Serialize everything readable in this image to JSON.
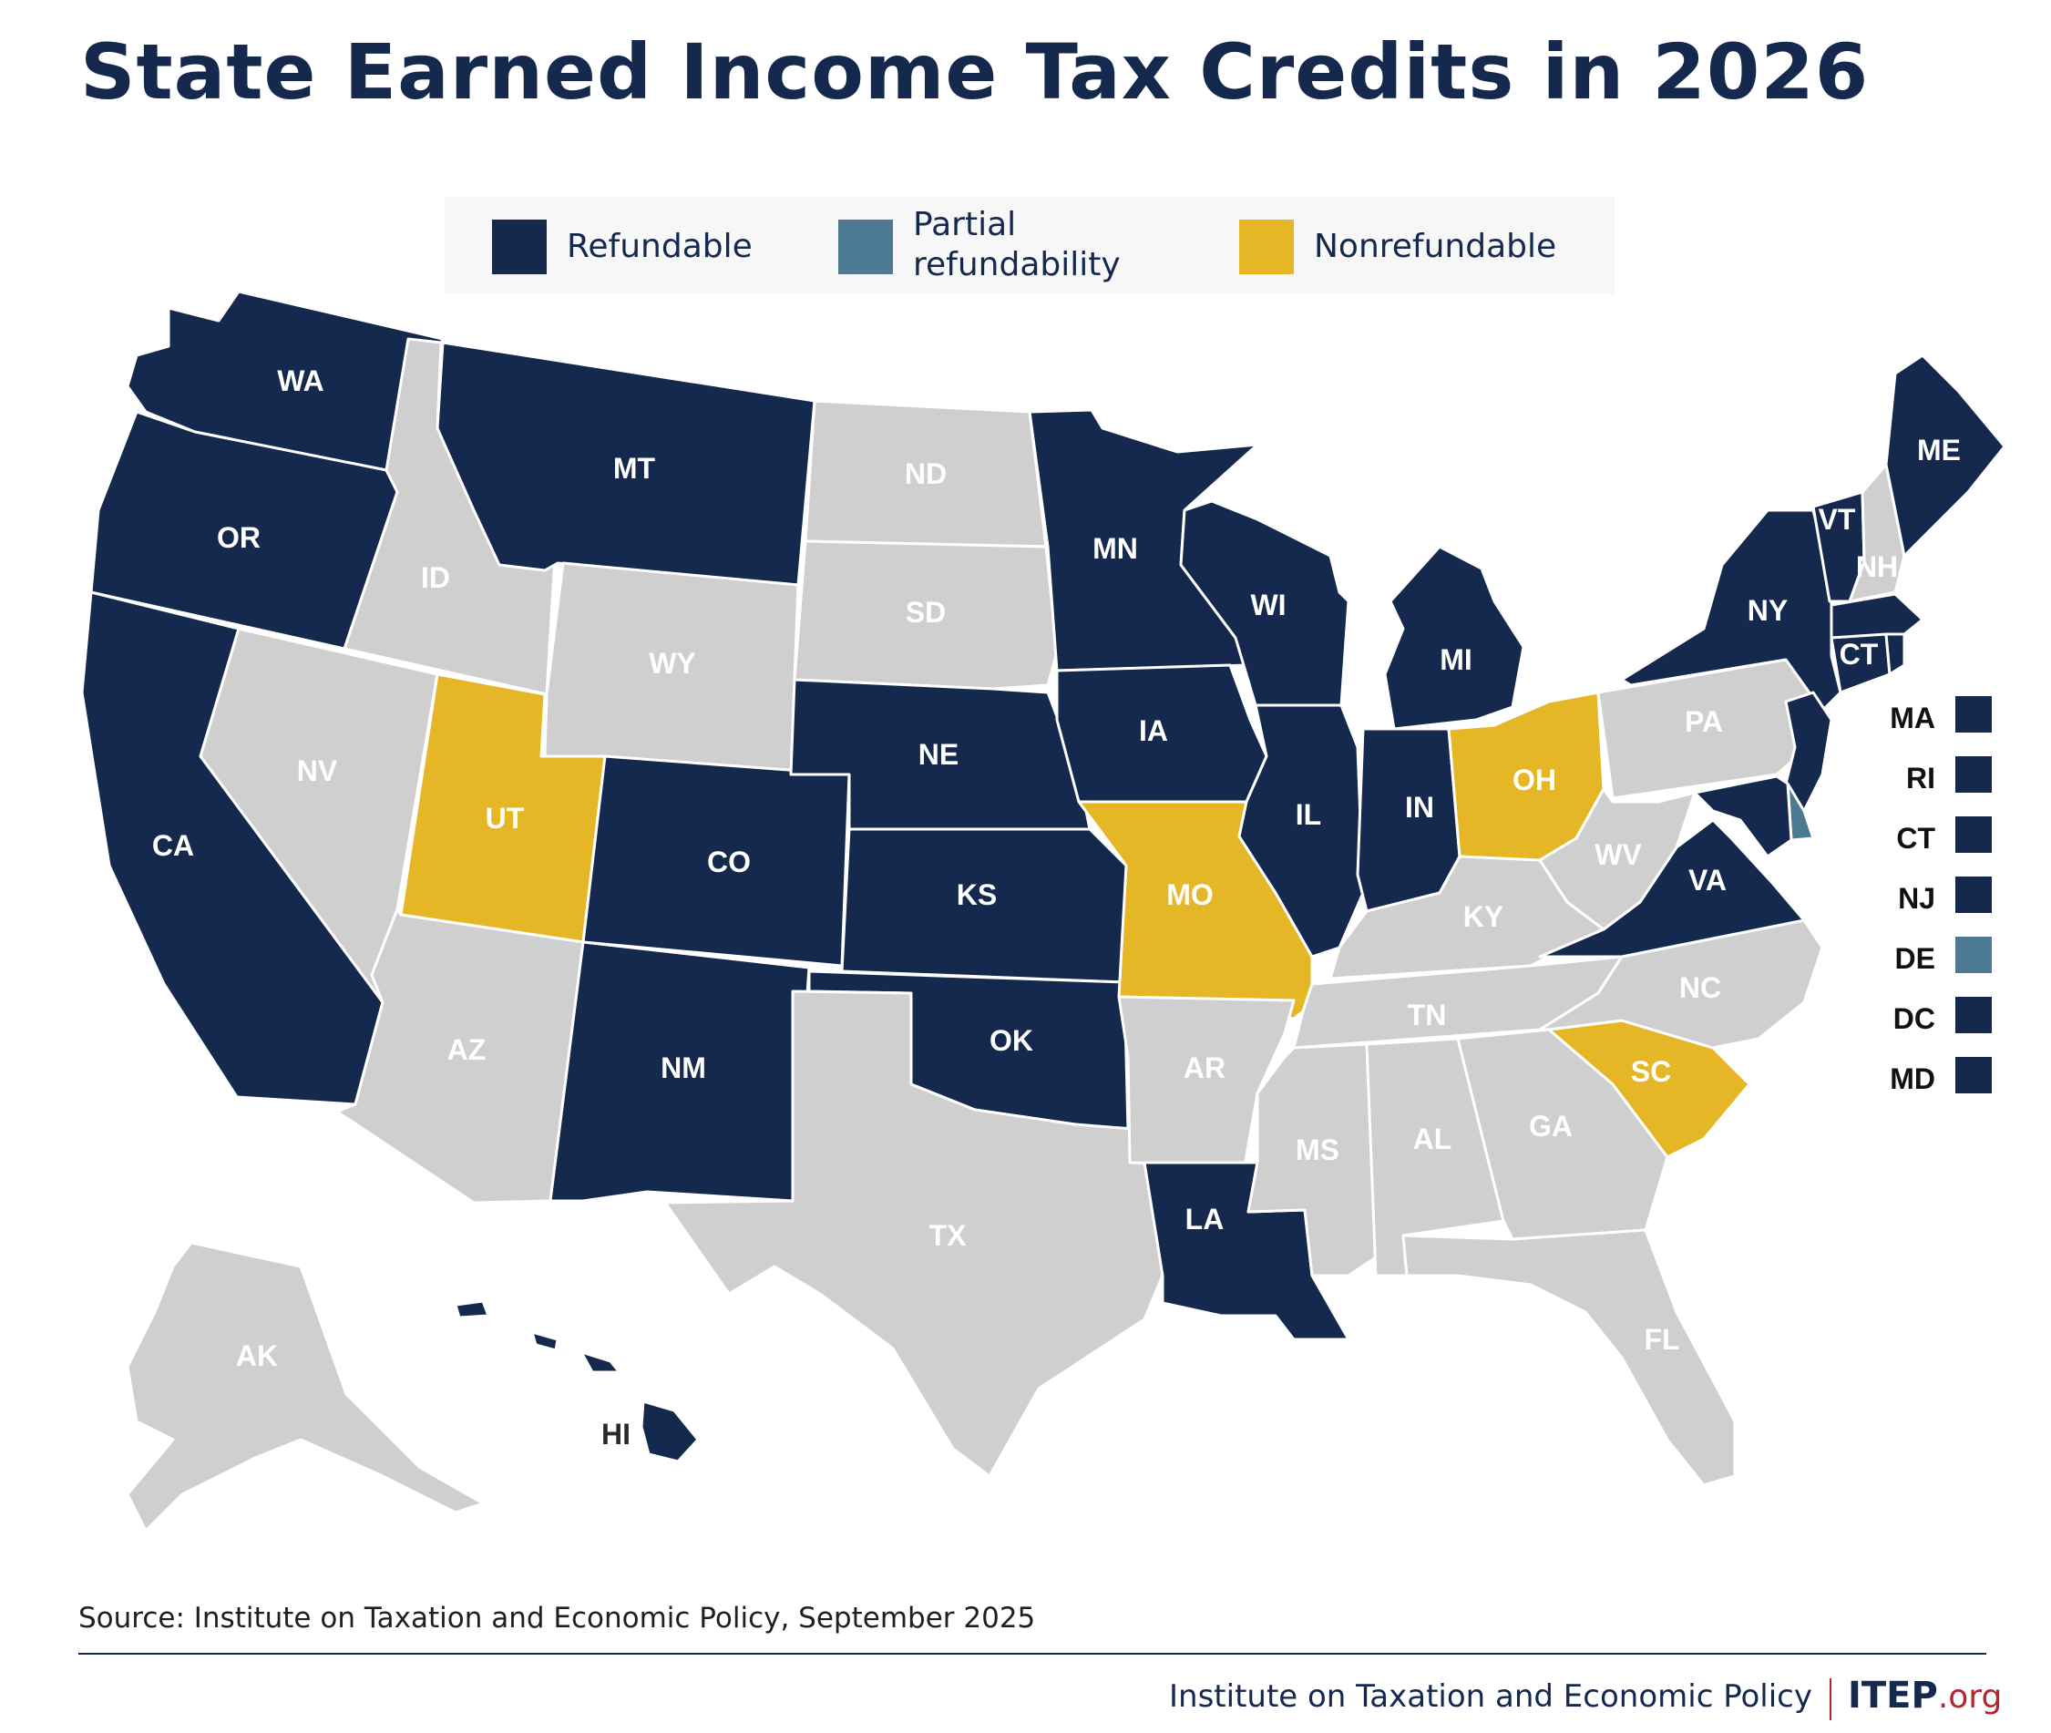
{
  "title": "State Earned Income Tax Credits in 2026",
  "legend": {
    "refundable": "Refundable",
    "partial_line1": "Partial",
    "partial_line2": "refundability",
    "nonrefundable": "Nonrefundable"
  },
  "colors": {
    "refundable": "#14294d",
    "partial": "#4d7a93",
    "nonrefundable": "#e5b727",
    "none": "#cfcfcf",
    "label_on_dark": "#ffffff",
    "label_on_light": "#ffffff"
  },
  "states": {
    "WA": "WA",
    "OR": "OR",
    "CA": "CA",
    "ID": "ID",
    "NV": "NV",
    "MT": "MT",
    "WY": "WY",
    "UT": "UT",
    "AZ": "AZ",
    "CO": "CO",
    "NM": "NM",
    "ND": "ND",
    "SD": "SD",
    "NE": "NE",
    "KS": "KS",
    "OK": "OK",
    "TX": "TX",
    "MN": "MN",
    "IA": "IA",
    "MO": "MO",
    "AR": "AR",
    "LA": "LA",
    "WI": "WI",
    "IL": "IL",
    "MI": "MI",
    "IN": "IN",
    "OH": "OH",
    "KY": "KY",
    "TN": "TN",
    "MS": "MS",
    "AL": "AL",
    "GA": "GA",
    "FL": "FL",
    "SC": "SC",
    "NC": "NC",
    "VA": "VA",
    "WV": "WV",
    "PA": "PA",
    "NY": "NY",
    "VT": "VT",
    "NH": "NH",
    "ME": "ME",
    "CT": "CT",
    "AK": "AK",
    "HI": "HI"
  },
  "map_data": {
    "refundable": [
      "WA",
      "OR",
      "CA",
      "MT",
      "CO",
      "NM",
      "NE",
      "KS",
      "OK",
      "MN",
      "IA",
      "LA",
      "WI",
      "IL",
      "MI",
      "IN",
      "VA",
      "NY",
      "VT",
      "ME",
      "MA",
      "RI",
      "CT",
      "NJ",
      "DC",
      "MD",
      "HI"
    ],
    "partial": [
      "DE"
    ],
    "nonrefundable": [
      "UT",
      "MO",
      "OH",
      "SC"
    ],
    "none": [
      "ID",
      "NV",
      "AZ",
      "WY",
      "ND",
      "SD",
      "TX",
      "AR",
      "KY",
      "TN",
      "MS",
      "AL",
      "GA",
      "FL",
      "NC",
      "WV",
      "PA",
      "NH",
      "AK"
    ]
  },
  "side_states": [
    {
      "abbr": "MA",
      "category": "refundable"
    },
    {
      "abbr": "RI",
      "category": "refundable"
    },
    {
      "abbr": "CT",
      "category": "refundable"
    },
    {
      "abbr": "NJ",
      "category": "refundable"
    },
    {
      "abbr": "DE",
      "category": "partial"
    },
    {
      "abbr": "DC",
      "category": "refundable"
    },
    {
      "abbr": "MD",
      "category": "refundable"
    }
  ],
  "source": "Source: Institute on Taxation and Economic Policy, September 2025",
  "footer": {
    "org_name": "Institute on Taxation and Economic Policy",
    "logo_main": "ITEP",
    "logo_suffix": ".org"
  }
}
